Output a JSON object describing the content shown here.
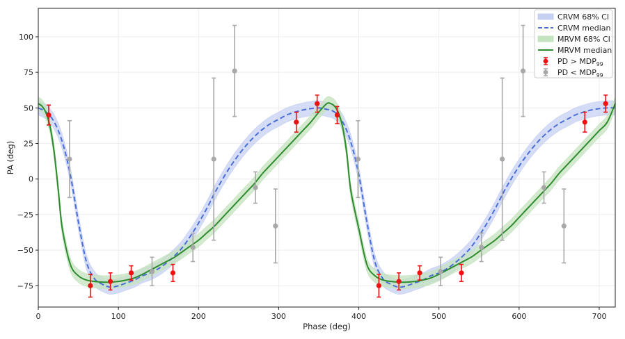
{
  "chart_data": {
    "type": "line",
    "xlabel": "Phase (deg)",
    "ylabel": "PA (deg)",
    "xlim": [
      0,
      720
    ],
    "ylim": [
      -90,
      120
    ],
    "xticks": [
      0,
      100,
      200,
      300,
      400,
      500,
      600,
      700
    ],
    "yticks": [
      -75,
      -50,
      -25,
      0,
      25,
      50,
      75,
      100
    ],
    "grid": true,
    "legend_position": "top-right",
    "legend": [
      {
        "key": "crvm_ci",
        "label": "CRVM 68% CI"
      },
      {
        "key": "crvm_median",
        "label": "CRVM median"
      },
      {
        "key": "mrvm_ci",
        "label": "MRVM 68% CI"
      },
      {
        "key": "mrvm_median",
        "label": "MRVM median"
      },
      {
        "key": "pd_above",
        "label": "PD",
        "rel": ">",
        "sub_main": "MDP",
        "sub": "99"
      },
      {
        "key": "pd_below",
        "label": "PD",
        "rel": "<",
        "sub_main": "MDP",
        "sub": "99"
      }
    ],
    "colors": {
      "crvm": "#4a6fd6",
      "crvm_band": "#c7d0f3",
      "mrvm": "#2e8b2e",
      "mrvm_band": "#c4e3bf",
      "pd_above": "#ee1111",
      "pd_below": "#a8a8a8"
    },
    "series": [
      {
        "key": "crvm_median",
        "x": [
          0,
          10,
          20,
          30,
          40,
          50,
          60,
          70,
          80,
          90,
          100,
          110,
          120,
          130,
          140,
          150,
          160,
          170,
          180,
          190,
          200,
          210,
          220,
          230,
          240,
          250,
          260,
          270,
          280,
          290,
          300,
          310,
          320,
          330,
          340,
          350,
          360,
          370,
          380,
          390,
          400,
          410,
          420,
          430,
          440,
          450,
          460,
          470,
          480,
          490,
          500,
          510,
          520,
          530,
          540,
          550,
          560,
          570,
          580,
          590,
          600,
          610,
          620,
          630,
          640,
          650,
          660,
          670,
          680,
          690,
          700,
          710,
          720
        ],
        "y": [
          50,
          47,
          40,
          26,
          3,
          -30,
          -58,
          -70,
          -74,
          -76,
          -75,
          -73,
          -71,
          -68,
          -66,
          -63,
          -59,
          -54,
          -48,
          -40,
          -31,
          -21,
          -10,
          0,
          9,
          17,
          24,
          30,
          35,
          39,
          42,
          45,
          47,
          48.5,
          49.5,
          50,
          49,
          47,
          40,
          26,
          3,
          -30,
          -58,
          -70,
          -74,
          -76,
          -75,
          -73,
          -71,
          -68,
          -66,
          -63,
          -59,
          -54,
          -48,
          -40,
          -31,
          -21,
          -10,
          0,
          9,
          17,
          24,
          30,
          35,
          39,
          42,
          45,
          47,
          48.5,
          49.5,
          50,
          50
        ]
      },
      {
        "key": "mrvm_median",
        "x": [
          0,
          5,
          10,
          15,
          20,
          25,
          30,
          40,
          50,
          60,
          70,
          80,
          90,
          100,
          110,
          120,
          130,
          140,
          150,
          160,
          170,
          180,
          190,
          200,
          210,
          220,
          230,
          240,
          250,
          260,
          270,
          280,
          290,
          300,
          310,
          320,
          330,
          340,
          350,
          360,
          365,
          370,
          375,
          380,
          385,
          390,
          400,
          410,
          420,
          430,
          440,
          450,
          460,
          470,
          480,
          490,
          500,
          510,
          520,
          530,
          540,
          550,
          560,
          570,
          580,
          590,
          600,
          610,
          620,
          630,
          640,
          650,
          660,
          670,
          680,
          690,
          700,
          710,
          720
        ],
        "y": [
          53,
          51,
          46,
          36,
          18,
          -8,
          -35,
          -60,
          -68,
          -71,
          -72,
          -72.5,
          -72.5,
          -72,
          -71,
          -69.5,
          -67,
          -64,
          -61,
          -58,
          -55,
          -51,
          -47,
          -43,
          -38,
          -33,
          -27,
          -21,
          -15,
          -9,
          -3,
          4,
          10,
          16,
          22,
          28,
          34,
          40,
          47,
          53,
          53,
          51,
          46,
          36,
          18,
          -8,
          -35,
          -60,
          -68,
          -71,
          -72,
          -72.5,
          -72.5,
          -72,
          -71,
          -69.5,
          -67,
          -64,
          -61,
          -58,
          -55,
          -51,
          -47,
          -43,
          -38,
          -33,
          -27,
          -21,
          -15,
          -9,
          -3,
          4,
          10,
          16,
          22,
          28,
          34,
          40,
          53
        ]
      }
    ],
    "bands": [
      {
        "key": "crvm_ci",
        "halfwidth": 5
      },
      {
        "key": "mrvm_ci",
        "halfwidth": 4.5
      }
    ],
    "points_above": [
      {
        "x": 13,
        "y": 45,
        "err": 7
      },
      {
        "x": 65,
        "y": -75,
        "err": 8
      },
      {
        "x": 90,
        "y": -72,
        "err": 6
      },
      {
        "x": 116,
        "y": -66,
        "err": 5
      },
      {
        "x": 168,
        "y": -66,
        "err": 6
      },
      {
        "x": 322,
        "y": 40,
        "err": 7
      },
      {
        "x": 348,
        "y": 53,
        "err": 6
      },
      {
        "x": 373,
        "y": 45,
        "err": 6
      },
      {
        "x": 425,
        "y": -75,
        "err": 8
      },
      {
        "x": 450,
        "y": -72,
        "err": 6
      },
      {
        "x": 476,
        "y": -66,
        "err": 5
      },
      {
        "x": 528,
        "y": -66,
        "err": 6
      },
      {
        "x": 682,
        "y": 40,
        "err": 7
      },
      {
        "x": 708,
        "y": 53,
        "err": 6
      }
    ],
    "points_below": [
      {
        "x": 39,
        "y": 14,
        "err": 27
      },
      {
        "x": 142,
        "y": -65,
        "err": 10
      },
      {
        "x": 193,
        "y": -48,
        "err": 10
      },
      {
        "x": 219,
        "y": 14,
        "err": 57
      },
      {
        "x": 245,
        "y": 76,
        "err": 32
      },
      {
        "x": 271,
        "y": -6,
        "err": 11
      },
      {
        "x": 296,
        "y": -33,
        "err": 26
      },
      {
        "x": 399,
        "y": 14,
        "err": 27
      },
      {
        "x": 502,
        "y": -65,
        "err": 10
      },
      {
        "x": 553,
        "y": -48,
        "err": 10
      },
      {
        "x": 579,
        "y": 14,
        "err": 57
      },
      {
        "x": 605,
        "y": 76,
        "err": 32
      },
      {
        "x": 631,
        "y": -6,
        "err": 11
      },
      {
        "x": 656,
        "y": -33,
        "err": 26
      }
    ]
  }
}
